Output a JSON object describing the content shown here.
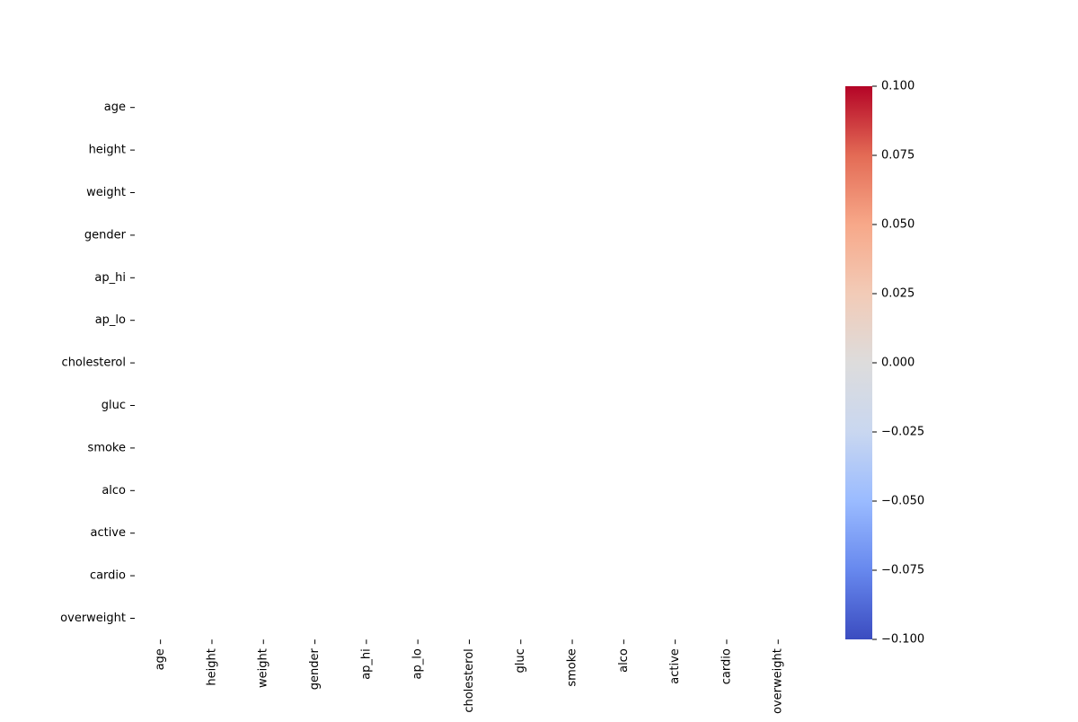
{
  "chart_data": {
    "type": "heatmap",
    "title": "",
    "xlabel": "",
    "ylabel": "",
    "x_categories": [
      "age",
      "height",
      "weight",
      "gender",
      "ap_hi",
      "ap_lo",
      "cholesterol",
      "gluc",
      "smoke",
      "alco",
      "active",
      "cardio",
      "overweight"
    ],
    "y_categories": [
      "age",
      "height",
      "weight",
      "gender",
      "ap_hi",
      "ap_lo",
      "cholesterol",
      "gluc",
      "smoke",
      "alco",
      "active",
      "cardio",
      "overweight"
    ],
    "values": [],
    "grid": false,
    "colorbar": {
      "colormap": "coolwarm",
      "range": [
        -0.1,
        0.1
      ],
      "ticks": [
        {
          "value": 0.1,
          "label": "0.100"
        },
        {
          "value": 0.075,
          "label": "0.075"
        },
        {
          "value": 0.05,
          "label": "0.050"
        },
        {
          "value": 0.025,
          "label": "0.025"
        },
        {
          "value": 0.0,
          "label": "0.000"
        },
        {
          "value": -0.025,
          "label": "−0.025"
        },
        {
          "value": -0.05,
          "label": "−0.050"
        },
        {
          "value": -0.075,
          "label": "−0.075"
        },
        {
          "value": -0.1,
          "label": "−0.100"
        }
      ],
      "position": "right",
      "colors": [
        "#3b4cc0",
        "#6788ee",
        "#9abbff",
        "#c9d7f0",
        "#dddcdc",
        "#f2cbb7",
        "#f7a889",
        "#e36b55",
        "#b40426"
      ]
    }
  }
}
